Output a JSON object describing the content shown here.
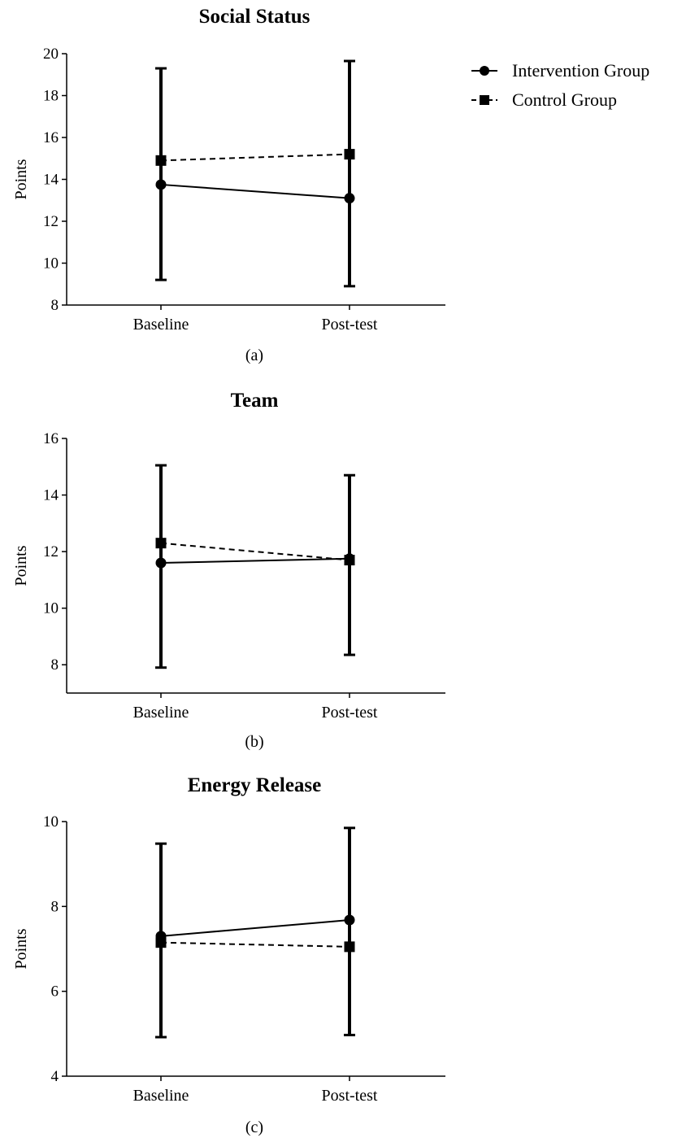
{
  "legend": {
    "placement": "top-right",
    "entries": [
      {
        "label": "Intervention Group",
        "marker": "circle",
        "line": "solid"
      },
      {
        "label": "Control Group",
        "marker": "square",
        "line": "dashed"
      }
    ]
  },
  "chart_data": [
    {
      "type": "line",
      "title": "Social Status",
      "caption": "(a)",
      "ylabel": "Points",
      "categories": [
        "Baseline",
        "Post-test"
      ],
      "ylim": [
        8,
        20
      ],
      "yticks": [
        8,
        10,
        12,
        14,
        16,
        18,
        20
      ],
      "grid": false,
      "series": [
        {
          "name": "Intervention Group",
          "values": [
            13.75,
            13.1
          ],
          "error_low": [
            9.2,
            8.9
          ],
          "error_high": [
            19.3,
            19.65
          ]
        },
        {
          "name": "Control Group",
          "values": [
            14.9,
            15.2
          ]
        }
      ]
    },
    {
      "type": "line",
      "title": "Team",
      "caption": "(b)",
      "ylabel": "Points",
      "categories": [
        "Baseline",
        "Post-test"
      ],
      "ylim": [
        7,
        16
      ],
      "yticks": [
        8,
        10,
        12,
        14,
        16
      ],
      "grid": false,
      "series": [
        {
          "name": "Intervention Group",
          "values": [
            11.6,
            11.75
          ],
          "error_low": [
            7.9,
            8.35
          ],
          "error_high": [
            15.05,
            14.7
          ]
        },
        {
          "name": "Control Group",
          "values": [
            12.3,
            11.7
          ]
        }
      ]
    },
    {
      "type": "line",
      "title": "Energy Release",
      "caption": "(c)",
      "ylabel": "Points",
      "categories": [
        "Baseline",
        "Post-test"
      ],
      "ylim": [
        4,
        10
      ],
      "yticks": [
        4,
        6,
        8,
        10
      ],
      "grid": false,
      "series": [
        {
          "name": "Intervention Group",
          "values": [
            7.3,
            7.68
          ],
          "error_low": [
            4.92,
            4.97
          ],
          "error_high": [
            9.48,
            9.85
          ]
        },
        {
          "name": "Control Group",
          "values": [
            7.15,
            7.05
          ]
        }
      ]
    }
  ]
}
